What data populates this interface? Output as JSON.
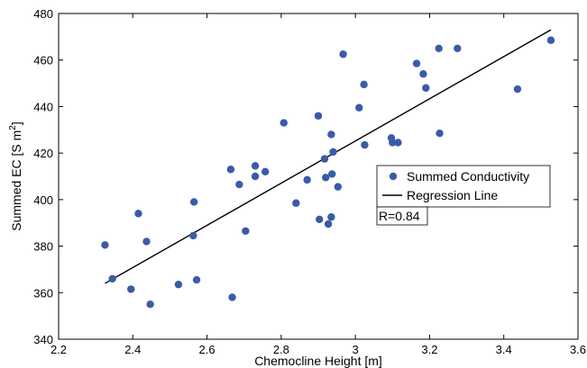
{
  "chart_data": {
    "type": "scatter",
    "xlabel": "Chemocline Height [m]",
    "ylabel_main": "Summed EC [S m",
    "ylabel_sup": "2",
    "ylabel_end": "]",
    "xlim": [
      2.2,
      3.6
    ],
    "ylim": [
      340,
      480
    ],
    "xticks": [
      "2.2",
      "2.4",
      "2.6",
      "2.8",
      "3",
      "3.2",
      "3.4",
      "3.6"
    ],
    "yticks": [
      "340",
      "360",
      "380",
      "400",
      "420",
      "440",
      "460",
      "480"
    ],
    "series": [
      {
        "name": "Summed Conductivity",
        "color": "#3a5ba8",
        "points": [
          [
            2.325,
            380.5
          ],
          [
            2.345,
            366
          ],
          [
            2.395,
            361.5
          ],
          [
            2.415,
            394
          ],
          [
            2.437,
            382
          ],
          [
            2.447,
            355
          ],
          [
            2.523,
            363.5
          ],
          [
            2.563,
            384.5
          ],
          [
            2.565,
            399
          ],
          [
            2.572,
            365.5
          ],
          [
            2.664,
            413
          ],
          [
            2.668,
            358
          ],
          [
            2.687,
            406.5
          ],
          [
            2.704,
            386.5
          ],
          [
            2.73,
            410
          ],
          [
            2.73,
            414.5
          ],
          [
            2.757,
            412
          ],
          [
            2.807,
            433
          ],
          [
            2.84,
            398.5
          ],
          [
            2.87,
            408.5
          ],
          [
            2.9,
            436
          ],
          [
            2.903,
            391.5
          ],
          [
            2.917,
            417.5
          ],
          [
            2.92,
            409.5
          ],
          [
            2.927,
            389.5
          ],
          [
            2.935,
            428
          ],
          [
            2.935,
            392.5
          ],
          [
            2.937,
            411
          ],
          [
            2.94,
            420.5
          ],
          [
            2.953,
            405.5
          ],
          [
            2.967,
            462.5
          ],
          [
            3.01,
            439.5
          ],
          [
            3.023,
            449.5
          ],
          [
            3.025,
            423.5
          ],
          [
            3.097,
            426.5
          ],
          [
            3.1,
            424.5
          ],
          [
            3.115,
            424.5
          ],
          [
            3.165,
            458.5
          ],
          [
            3.183,
            454
          ],
          [
            3.19,
            448
          ],
          [
            3.225,
            465
          ],
          [
            3.227,
            428.5
          ],
          [
            3.275,
            465
          ],
          [
            3.437,
            447.5
          ],
          [
            3.527,
            468.5
          ]
        ]
      },
      {
        "name": "Regression Line",
        "color": "#000000",
        "line": [
          [
            2.325,
            364
          ],
          [
            3.527,
            473
          ]
        ]
      }
    ],
    "annotation": "R=0.84",
    "legend_position": "right-center",
    "grid": false
  }
}
